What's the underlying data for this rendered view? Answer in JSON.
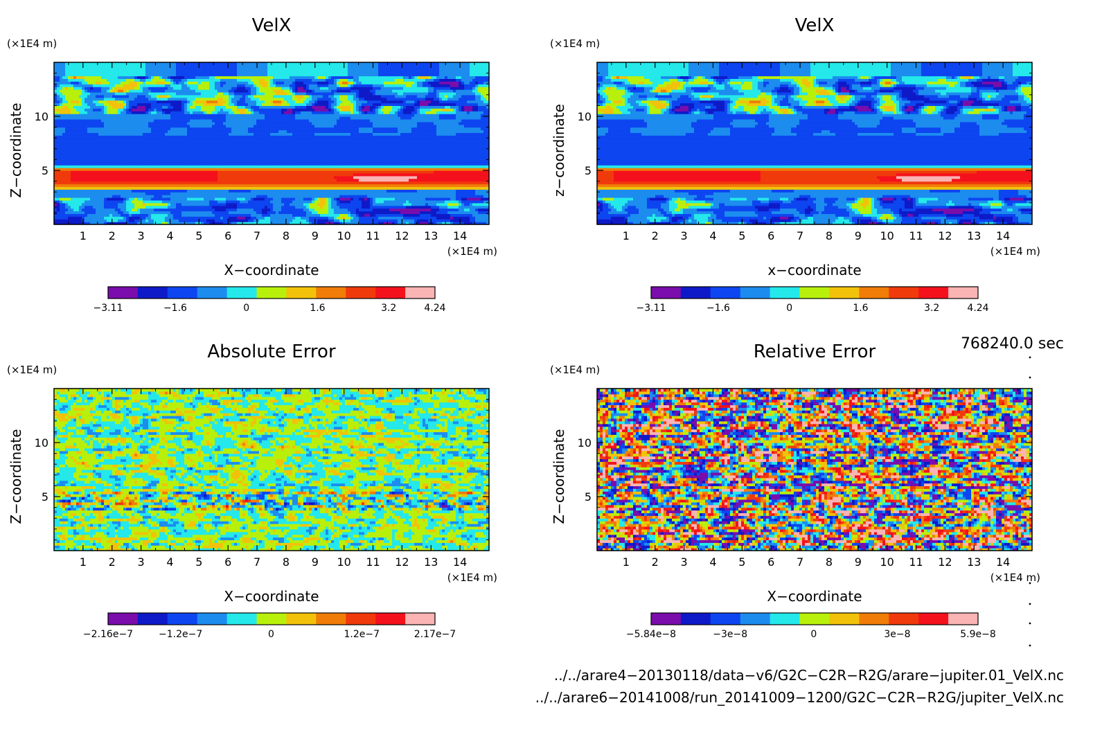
{
  "chart_data": [
    {
      "type": "heatmap",
      "title": "VelX",
      "xlabel": "X−coordinate",
      "ylabel": "Z−coordinate",
      "x_unit": "(×1E4 m)",
      "y_unit": "(×1E4 m)",
      "xlim": [
        0,
        15
      ],
      "ylim": [
        0,
        15
      ],
      "x_ticks": [
        "1",
        "2",
        "3",
        "4",
        "5",
        "6",
        "7",
        "8",
        "9",
        "10",
        "11",
        "12",
        "13",
        "14"
      ],
      "y_ticks": [
        "5",
        "10"
      ],
      "field": "banded",
      "colorbar": {
        "range": [
          -3.11,
          4.24
        ],
        "tick_labels": [
          "−3.11",
          "−1.6",
          "0",
          "1.6",
          "3.2",
          "4.24"
        ],
        "tick_values": [
          -3.11,
          -1.6,
          0,
          1.6,
          3.2,
          4.24
        ],
        "colors": [
          "#7a0dab",
          "#0e1ac8",
          "#0d45f0",
          "#1c8cef",
          "#24e8ea",
          "#b8f00c",
          "#f2c20a",
          "#f07d08",
          "#f03a0c",
          "#f4111c",
          "#fab4b4"
        ]
      }
    },
    {
      "type": "heatmap",
      "title": "VelX",
      "xlabel": "x−coordinate",
      "ylabel": "z−coordinate",
      "x_unit": "(×1E4 m)",
      "y_unit": "(×1E4 m)",
      "xlim": [
        0,
        15
      ],
      "ylim": [
        0,
        15
      ],
      "x_ticks": [
        "1",
        "2",
        "3",
        "4",
        "5",
        "6",
        "7",
        "8",
        "9",
        "10",
        "11",
        "12",
        "13",
        "14"
      ],
      "y_ticks": [
        "5",
        "10"
      ],
      "field": "banded",
      "colorbar": {
        "range": [
          -3.11,
          4.24
        ],
        "tick_labels": [
          "−3.11",
          "−1.6",
          "0",
          "1.6",
          "3.2",
          "4.24"
        ],
        "tick_values": [
          -3.11,
          -1.6,
          0,
          1.6,
          3.2,
          4.24
        ],
        "colors": [
          "#7a0dab",
          "#0e1ac8",
          "#0d45f0",
          "#1c8cef",
          "#24e8ea",
          "#b8f00c",
          "#f2c20a",
          "#f07d08",
          "#f03a0c",
          "#f4111c",
          "#fab4b4"
        ]
      }
    },
    {
      "type": "heatmap",
      "title": "Absolute Error",
      "xlabel": "X−coordinate",
      "ylabel": "Z−coordinate",
      "x_unit": "(×1E4 m)",
      "y_unit": "(×1E4 m)",
      "xlim": [
        0,
        15
      ],
      "ylim": [
        0,
        15
      ],
      "x_ticks": [
        "1",
        "2",
        "3",
        "4",
        "5",
        "6",
        "7",
        "8",
        "9",
        "10",
        "11",
        "12",
        "13",
        "14"
      ],
      "y_ticks": [
        "5",
        "10"
      ],
      "field": "abs_noise",
      "colorbar": {
        "range": [
          -2.16e-07,
          2.17e-07
        ],
        "tick_labels": [
          "−2.16e−7",
          "−1.2e−7",
          "0",
          "1.2e−7",
          "2.17e−7"
        ],
        "tick_values": [
          -2.16e-07,
          -1.2e-07,
          0,
          1.2e-07,
          2.17e-07
        ],
        "colors": [
          "#7a0dab",
          "#0e1ac8",
          "#0d45f0",
          "#1c8cef",
          "#24e8ea",
          "#b8f00c",
          "#f2c20a",
          "#f07d08",
          "#f03a0c",
          "#f4111c",
          "#fab4b4"
        ]
      }
    },
    {
      "type": "heatmap",
      "title": "Relative Error",
      "xlabel": "X−coordinate",
      "ylabel": "Z−coordinate",
      "x_unit": "(×1E4 m)",
      "y_unit": "(×1E4 m)",
      "xlim": [
        0,
        15
      ],
      "ylim": [
        0,
        15
      ],
      "x_ticks": [
        "1",
        "2",
        "3",
        "4",
        "5",
        "6",
        "7",
        "8",
        "9",
        "10",
        "11",
        "12",
        "13",
        "14"
      ],
      "y_ticks": [
        "5",
        "10"
      ],
      "field": "rel_noise",
      "colorbar": {
        "range": [
          -5.84e-08,
          5.9e-08
        ],
        "tick_labels": [
          "−5.84e−8",
          "−3e−8",
          "0",
          "3e−8",
          "5.9e−8"
        ],
        "tick_values": [
          -5.84e-08,
          -3e-08,
          0,
          3e-08,
          5.9e-08
        ],
        "colors": [
          "#7a0dab",
          "#0e1ac8",
          "#0d45f0",
          "#1c8cef",
          "#24e8ea",
          "#b8f00c",
          "#f2c20a",
          "#f07d08",
          "#f03a0c",
          "#f4111c",
          "#fab4b4"
        ]
      }
    }
  ],
  "info": {
    "time": "768240.0 sec",
    "file1": "../../arare4−20130118/data−v6/G2C−C2R−R2G/arare−jupiter.01_VelX.nc",
    "file2": "../../arare6−20141008/run_20141009−1200/G2C−C2R−R2G/jupiter_VelX.nc"
  }
}
